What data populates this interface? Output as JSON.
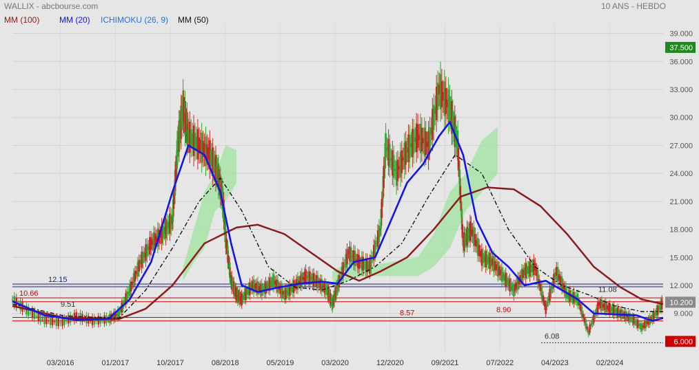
{
  "header": {
    "title": "WALLIX - abcbourse.com",
    "timeframe": "10 ANS - HEBDO"
  },
  "legend": [
    {
      "label": "MM (100)",
      "color": "#8b1a1a"
    },
    {
      "label": "MM (20)",
      "color": "#1414e6"
    },
    {
      "label": "ICHIMOKU (26, 9)",
      "color": "#2b6fd6"
    },
    {
      "label": "MM (50)",
      "color": "#111111"
    }
  ],
  "chart_data": {
    "type": "candlestick",
    "x_ticks": [
      "03/2016",
      "01/2017",
      "10/2017",
      "08/2018",
      "05/2019",
      "03/2020",
      "12/2020",
      "09/2021",
      "07/2022",
      "04/2023",
      "02/2024"
    ],
    "y_ticks": [
      "39.000",
      "36.000",
      "33.000",
      "30.000",
      "27.000",
      "24.000",
      "21.000",
      "18.000",
      "15.000",
      "12.000",
      "9.000"
    ],
    "ylim": [
      5,
      40
    ],
    "last_price": {
      "label": "37.500",
      "value": 37.5,
      "color": "#1e8a1e"
    },
    "current_price": {
      "label": "10.200",
      "value": 10.2
    },
    "low_price": {
      "label": "6.000",
      "value": 6.0,
      "color": "#cc0000"
    },
    "annotations": [
      {
        "label": "12.15",
        "value": 12.15
      },
      {
        "label": "10.66",
        "value": 10.66
      },
      {
        "label": "9.51",
        "value": 9.51
      },
      {
        "label": "8.57",
        "value": 8.57
      },
      {
        "label": "8.90",
        "value": 8.9
      },
      {
        "label": "11.08",
        "value": 11.08
      },
      {
        "label": "6.08",
        "value": 6.08
      }
    ],
    "close_series": [
      {
        "x": 0,
        "y": 10.5
      },
      {
        "x": 0.3,
        "y": 9.2
      },
      {
        "x": 0.6,
        "y": 8.3
      },
      {
        "x": 0.9,
        "y": 8.0
      },
      {
        "x": 1.2,
        "y": 8.7
      },
      {
        "x": 1.5,
        "y": 8.2
      },
      {
        "x": 1.8,
        "y": 8.4
      },
      {
        "x": 2.0,
        "y": 9.0
      },
      {
        "x": 2.2,
        "y": 11.5
      },
      {
        "x": 2.4,
        "y": 14.5
      },
      {
        "x": 2.6,
        "y": 16.5
      },
      {
        "x": 2.8,
        "y": 17.5
      },
      {
        "x": 3.0,
        "y": 19.0
      },
      {
        "x": 3.1,
        "y": 27.0
      },
      {
        "x": 3.2,
        "y": 31.0
      },
      {
        "x": 3.3,
        "y": 28.0
      },
      {
        "x": 3.5,
        "y": 27.0
      },
      {
        "x": 3.7,
        "y": 26.0
      },
      {
        "x": 3.85,
        "y": 24.0
      },
      {
        "x": 3.95,
        "y": 21.0
      },
      {
        "x": 4.0,
        "y": 17.0
      },
      {
        "x": 4.1,
        "y": 12.5
      },
      {
        "x": 4.2,
        "y": 11.0
      },
      {
        "x": 4.3,
        "y": 10.5
      },
      {
        "x": 4.5,
        "y": 12.0
      },
      {
        "x": 4.7,
        "y": 11.5
      },
      {
        "x": 4.9,
        "y": 12.5
      },
      {
        "x": 5.1,
        "y": 11.0
      },
      {
        "x": 5.3,
        "y": 12.0
      },
      {
        "x": 5.5,
        "y": 13.0
      },
      {
        "x": 5.7,
        "y": 12.5
      },
      {
        "x": 5.9,
        "y": 11.5
      },
      {
        "x": 6.0,
        "y": 10.0
      },
      {
        "x": 6.1,
        "y": 12.0
      },
      {
        "x": 6.3,
        "y": 15.5
      },
      {
        "x": 6.5,
        "y": 14.5
      },
      {
        "x": 6.7,
        "y": 14.0
      },
      {
        "x": 6.9,
        "y": 18.0
      },
      {
        "x": 7.0,
        "y": 27.0
      },
      {
        "x": 7.2,
        "y": 24.0
      },
      {
        "x": 7.4,
        "y": 26.5
      },
      {
        "x": 7.6,
        "y": 28.0
      },
      {
        "x": 7.8,
        "y": 27.0
      },
      {
        "x": 8.0,
        "y": 33.0
      },
      {
        "x": 8.2,
        "y": 31.0
      },
      {
        "x": 8.35,
        "y": 27.0
      },
      {
        "x": 8.45,
        "y": 16.5
      },
      {
        "x": 8.6,
        "y": 18.0
      },
      {
        "x": 8.8,
        "y": 15.0
      },
      {
        "x": 9.0,
        "y": 14.5
      },
      {
        "x": 9.2,
        "y": 13.0
      },
      {
        "x": 9.4,
        "y": 11.5
      },
      {
        "x": 9.6,
        "y": 13.5
      },
      {
        "x": 9.8,
        "y": 14.0
      },
      {
        "x": 10.0,
        "y": 9.5
      },
      {
        "x": 10.2,
        "y": 13.5
      },
      {
        "x": 10.4,
        "y": 11.0
      },
      {
        "x": 10.6,
        "y": 10.5
      },
      {
        "x": 10.8,
        "y": 7.0
      },
      {
        "x": 11.0,
        "y": 10.0
      },
      {
        "x": 11.2,
        "y": 9.5
      },
      {
        "x": 11.4,
        "y": 9.0
      },
      {
        "x": 11.6,
        "y": 8.5
      },
      {
        "x": 11.8,
        "y": 7.5
      },
      {
        "x": 12.0,
        "y": 8.5
      },
      {
        "x": 12.2,
        "y": 10.2
      }
    ],
    "ma20": [
      {
        "x": 0,
        "y": 10.3
      },
      {
        "x": 0.6,
        "y": 8.8
      },
      {
        "x": 1.2,
        "y": 8.3
      },
      {
        "x": 1.8,
        "y": 8.4
      },
      {
        "x": 2.2,
        "y": 10.5
      },
      {
        "x": 2.6,
        "y": 14.5
      },
      {
        "x": 3.0,
        "y": 22.0
      },
      {
        "x": 3.3,
        "y": 27.0
      },
      {
        "x": 3.6,
        "y": 26.0
      },
      {
        "x": 3.9,
        "y": 22.0
      },
      {
        "x": 4.1,
        "y": 16.5
      },
      {
        "x": 4.3,
        "y": 12.0
      },
      {
        "x": 4.6,
        "y": 11.3
      },
      {
        "x": 5.0,
        "y": 11.8
      },
      {
        "x": 5.4,
        "y": 12.2
      },
      {
        "x": 5.8,
        "y": 12.4
      },
      {
        "x": 6.1,
        "y": 12.2
      },
      {
        "x": 6.4,
        "y": 14.5
      },
      {
        "x": 6.8,
        "y": 15.0
      },
      {
        "x": 7.1,
        "y": 19.0
      },
      {
        "x": 7.4,
        "y": 23.0
      },
      {
        "x": 7.7,
        "y": 25.0
      },
      {
        "x": 8.0,
        "y": 28.0
      },
      {
        "x": 8.2,
        "y": 29.5
      },
      {
        "x": 8.45,
        "y": 26.0
      },
      {
        "x": 8.7,
        "y": 19.0
      },
      {
        "x": 9.0,
        "y": 15.5
      },
      {
        "x": 9.3,
        "y": 14.0
      },
      {
        "x": 9.6,
        "y": 12.0
      },
      {
        "x": 10.0,
        "y": 12.5
      },
      {
        "x": 10.3,
        "y": 11.5
      },
      {
        "x": 10.6,
        "y": 10.5
      },
      {
        "x": 10.9,
        "y": 9.0
      },
      {
        "x": 11.3,
        "y": 8.9
      },
      {
        "x": 11.7,
        "y": 8.8
      },
      {
        "x": 12.0,
        "y": 8.2
      },
      {
        "x": 12.2,
        "y": 8.5
      }
    ],
    "ma50": [
      {
        "x": 0,
        "y": 10.0
      },
      {
        "x": 1.0,
        "y": 8.7
      },
      {
        "x": 2.0,
        "y": 8.5
      },
      {
        "x": 2.5,
        "y": 11.5
      },
      {
        "x": 3.0,
        "y": 16.0
      },
      {
        "x": 3.5,
        "y": 21.0
      },
      {
        "x": 3.9,
        "y": 23.5
      },
      {
        "x": 4.3,
        "y": 20.0
      },
      {
        "x": 4.8,
        "y": 14.0
      },
      {
        "x": 5.3,
        "y": 11.8
      },
      {
        "x": 5.8,
        "y": 11.5
      },
      {
        "x": 6.3,
        "y": 12.5
      },
      {
        "x": 6.8,
        "y": 14.0
      },
      {
        "x": 7.3,
        "y": 16.5
      },
      {
        "x": 7.8,
        "y": 21.5
      },
      {
        "x": 8.3,
        "y": 26.0
      },
      {
        "x": 8.8,
        "y": 24.0
      },
      {
        "x": 9.3,
        "y": 18.0
      },
      {
        "x": 9.8,
        "y": 14.0
      },
      {
        "x": 10.3,
        "y": 12.0
      },
      {
        "x": 10.8,
        "y": 11.0
      },
      {
        "x": 11.3,
        "y": 9.8
      },
      {
        "x": 11.8,
        "y": 9.2
      },
      {
        "x": 12.2,
        "y": 9.2
      }
    ],
    "ma100": [
      {
        "x": 0,
        "y": 9.8
      },
      {
        "x": 1.0,
        "y": 8.5
      },
      {
        "x": 2.0,
        "y": 8.4
      },
      {
        "x": 2.5,
        "y": 9.5
      },
      {
        "x": 3.0,
        "y": 12.0
      },
      {
        "x": 3.6,
        "y": 16.5
      },
      {
        "x": 4.2,
        "y": 18.2
      },
      {
        "x": 4.6,
        "y": 18.5
      },
      {
        "x": 5.1,
        "y": 17.5
      },
      {
        "x": 5.6,
        "y": 15.5
      },
      {
        "x": 6.1,
        "y": 13.5
      },
      {
        "x": 6.5,
        "y": 12.5
      },
      {
        "x": 6.9,
        "y": 13.5
      },
      {
        "x": 7.4,
        "y": 15.0
      },
      {
        "x": 7.9,
        "y": 18.0
      },
      {
        "x": 8.4,
        "y": 21.5
      },
      {
        "x": 8.9,
        "y": 22.5
      },
      {
        "x": 9.4,
        "y": 22.3
      },
      {
        "x": 9.9,
        "y": 20.5
      },
      {
        "x": 10.4,
        "y": 17.5
      },
      {
        "x": 10.9,
        "y": 14.0
      },
      {
        "x": 11.4,
        "y": 11.8
      },
      {
        "x": 11.8,
        "y": 10.5
      },
      {
        "x": 12.2,
        "y": 10.0
      }
    ],
    "ichimoku_cloud": [
      {
        "x": 3.2,
        "upper": 14.0,
        "lower": 12.5
      },
      {
        "x": 3.4,
        "upper": 18.0,
        "lower": 14.5
      },
      {
        "x": 3.6,
        "upper": 22.0,
        "lower": 16.0
      },
      {
        "x": 3.8,
        "upper": 24.0,
        "lower": 20.0
      },
      {
        "x": 4.0,
        "upper": 27.0,
        "lower": 21.0
      },
      {
        "x": 4.2,
        "upper": 26.5,
        "lower": 23.0
      },
      {
        "x": 6.0,
        "upper": 13.5,
        "lower": 12.0
      },
      {
        "x": 6.3,
        "upper": 14.5,
        "lower": 12.5
      },
      {
        "x": 6.6,
        "upper": 14.0,
        "lower": 13.0
      },
      {
        "x": 7.6,
        "upper": 15.0,
        "lower": 13.0
      },
      {
        "x": 7.9,
        "upper": 17.5,
        "lower": 14.0
      },
      {
        "x": 8.2,
        "upper": 22.0,
        "lower": 16.0
      },
      {
        "x": 8.5,
        "upper": 24.0,
        "lower": 20.0
      },
      {
        "x": 8.8,
        "upper": 27.5,
        "lower": 22.0
      },
      {
        "x": 9.1,
        "upper": 29.0,
        "lower": 24.0
      }
    ],
    "horizontal_lines": [
      {
        "value": 12.15,
        "color": "#22227a",
        "style": "solid"
      },
      {
        "value": 11.85,
        "color": "#22227a",
        "style": "solid"
      },
      {
        "value": 10.66,
        "color": "#cc0000",
        "style": "solid"
      },
      {
        "value": 10.25,
        "color": "#cc0000",
        "style": "solid"
      },
      {
        "value": 8.57,
        "color": "#cc0000",
        "style": "solid"
      },
      {
        "value": 8.2,
        "color": "#cc0000",
        "style": "solid"
      }
    ]
  }
}
